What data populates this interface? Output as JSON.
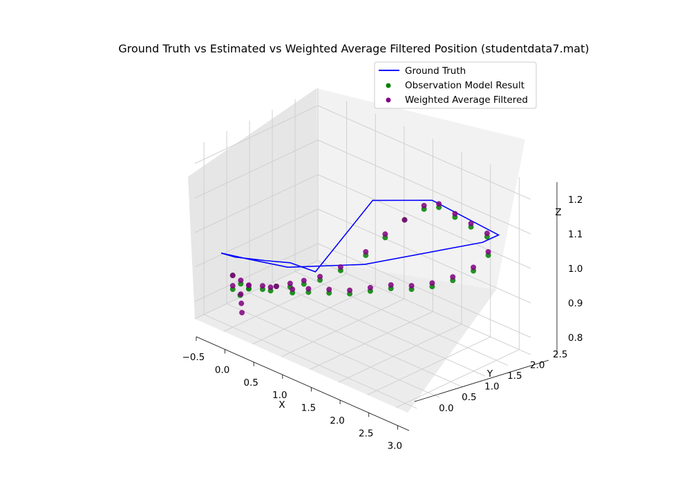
{
  "chart_data": {
    "type": "scatter",
    "projection": "3d",
    "title": "Ground Truth vs Estimated vs Weighted Average Filtered Position (studentdata7.mat)",
    "xlabel": "X",
    "ylabel": "Y",
    "zlabel": "Z",
    "xlim": [
      -0.5,
      3.2
    ],
    "ylim": [
      -0.2,
      2.5
    ],
    "zlim": [
      0.75,
      1.25
    ],
    "xticks": [
      "−0.5",
      "0.0",
      "0.5",
      "1.0",
      "1.5",
      "2.0",
      "2.5",
      "3.0"
    ],
    "yticks": [
      "0.0",
      "0.5",
      "1.0",
      "1.5",
      "2.0",
      "2.5"
    ],
    "zticks": [
      "0.8",
      "0.9",
      "1.0",
      "1.1",
      "1.2"
    ],
    "grid": true,
    "legend_position": "top-right",
    "colors": {
      "ground_truth": "#0000ff",
      "observation": "#008000",
      "filtered": "#800080",
      "pane_back": "#f2f2f2",
      "pane_side": "#e6e6e6",
      "pane_floor": "#ececec",
      "grid": "#d0d0d0"
    },
    "series": [
      {
        "name": "Ground Truth",
        "kind": "line",
        "points": [
          [
            -0.2,
            0.0,
            0.95
          ],
          [
            0.0,
            0.05,
            0.95
          ],
          [
            0.4,
            0.2,
            0.96
          ],
          [
            0.8,
            0.25,
            0.98
          ],
          [
            1.2,
            0.3,
            0.98
          ],
          [
            1.8,
            0.8,
            1.2
          ],
          [
            2.2,
            1.6,
            1.18
          ],
          [
            2.8,
            2.3,
            1.08
          ],
          [
            2.6,
            2.2,
            1.05
          ],
          [
            1.5,
            1.0,
            0.98
          ],
          [
            0.8,
            0.2,
            0.97
          ],
          [
            0.2,
            0.05,
            0.96
          ],
          [
            -0.2,
            0.0,
            0.95
          ]
        ]
      },
      {
        "name": "Observation Model Result",
        "kind": "scatter",
        "points": [
          [
            0.0,
            0.0,
            0.9
          ],
          [
            0.1,
            0.05,
            0.88
          ],
          [
            0.2,
            0.1,
            0.87
          ],
          [
            0.4,
            0.15,
            0.88
          ],
          [
            0.6,
            0.2,
            0.9
          ],
          [
            0.8,
            0.25,
            0.91
          ],
          [
            1.0,
            0.3,
            0.93
          ],
          [
            1.2,
            0.4,
            0.95
          ],
          [
            1.4,
            0.6,
            0.98
          ],
          [
            1.6,
            0.9,
            1.02
          ],
          [
            1.7,
            1.2,
            1.06
          ],
          [
            1.8,
            1.5,
            1.1
          ],
          [
            1.9,
            1.8,
            1.12
          ],
          [
            2.0,
            2.0,
            1.12
          ],
          [
            2.2,
            2.1,
            1.1
          ],
          [
            2.4,
            2.2,
            1.08
          ],
          [
            2.6,
            2.3,
            1.06
          ],
          [
            2.7,
            2.2,
            1.02
          ],
          [
            2.6,
            2.0,
            0.98
          ],
          [
            2.4,
            1.8,
            0.95
          ],
          [
            2.2,
            1.6,
            0.93
          ],
          [
            2.0,
            1.4,
            0.92
          ],
          [
            1.8,
            1.2,
            0.92
          ],
          [
            1.6,
            1.0,
            0.91
          ],
          [
            1.4,
            0.8,
            0.9
          ],
          [
            1.2,
            0.6,
            0.9
          ],
          [
            1.0,
            0.4,
            0.9
          ],
          [
            0.8,
            0.3,
            0.89
          ],
          [
            0.5,
            0.2,
            0.88
          ],
          [
            0.2,
            0.1,
            0.87
          ],
          [
            0.0,
            0.0,
            0.86
          ],
          [
            0.05,
            0.1,
            0.84
          ]
        ]
      },
      {
        "name": "Weighted Average Filtered",
        "kind": "scatter",
        "points": [
          [
            0.0,
            0.0,
            0.9
          ],
          [
            0.1,
            0.05,
            0.89
          ],
          [
            0.2,
            0.1,
            0.88
          ],
          [
            0.4,
            0.15,
            0.89
          ],
          [
            0.6,
            0.2,
            0.9
          ],
          [
            0.8,
            0.25,
            0.92
          ],
          [
            1.0,
            0.3,
            0.94
          ],
          [
            1.2,
            0.4,
            0.96
          ],
          [
            1.4,
            0.6,
            0.99
          ],
          [
            1.6,
            0.9,
            1.03
          ],
          [
            1.7,
            1.2,
            1.07
          ],
          [
            1.8,
            1.5,
            1.1
          ],
          [
            1.9,
            1.8,
            1.13
          ],
          [
            2.0,
            2.0,
            1.13
          ],
          [
            2.2,
            2.1,
            1.11
          ],
          [
            2.4,
            2.2,
            1.09
          ],
          [
            2.6,
            2.3,
            1.07
          ],
          [
            2.7,
            2.2,
            1.03
          ],
          [
            2.6,
            2.0,
            0.99
          ],
          [
            2.4,
            1.8,
            0.96
          ],
          [
            2.2,
            1.6,
            0.94
          ],
          [
            2.0,
            1.4,
            0.93
          ],
          [
            1.8,
            1.2,
            0.93
          ],
          [
            1.6,
            1.0,
            0.92
          ],
          [
            1.4,
            0.8,
            0.91
          ],
          [
            1.2,
            0.6,
            0.91
          ],
          [
            1.0,
            0.4,
            0.91
          ],
          [
            0.8,
            0.3,
            0.9
          ],
          [
            0.5,
            0.2,
            0.89
          ],
          [
            0.2,
            0.1,
            0.88
          ],
          [
            0.0,
            0.0,
            0.87
          ],
          [
            0.1,
            0.05,
            0.85
          ],
          [
            0.15,
            0.0,
            0.83
          ],
          [
            0.2,
            -0.05,
            0.81
          ]
        ]
      }
    ]
  }
}
